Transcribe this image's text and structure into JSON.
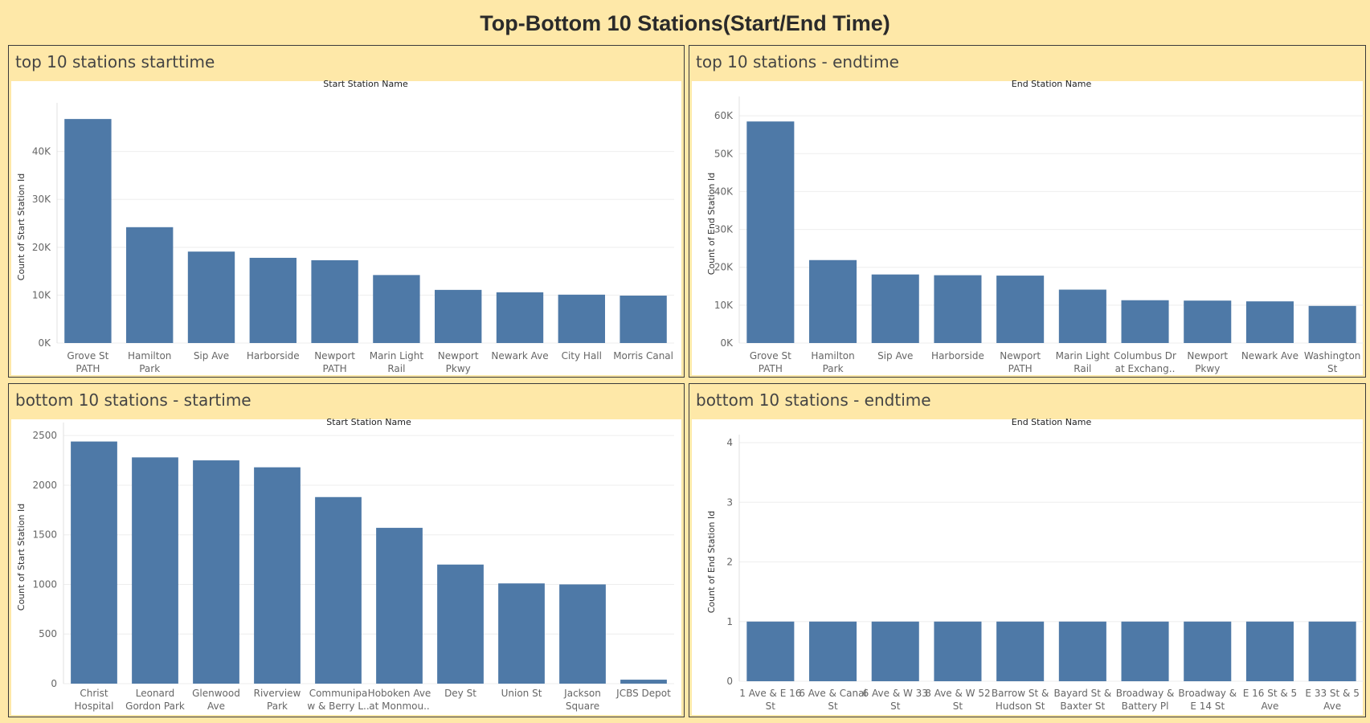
{
  "dashboard": {
    "title": "Top-Bottom 10 Stations(Start/End Time)"
  },
  "colors": {
    "bar": "#4e79a7",
    "background": "#fee8a8",
    "plot": "#ffffff"
  },
  "chart_data": [
    {
      "id": "top-start",
      "type": "bar",
      "title": "top 10 stations starttime",
      "column_header": "Start Station Name",
      "ylabel": "Count of Start Station Id",
      "ylim": [
        0,
        48500
      ],
      "yticks": [
        0,
        10000,
        20000,
        30000,
        40000
      ],
      "ytick_labels": [
        "0K",
        "10K",
        "20K",
        "30K",
        "40K"
      ],
      "categories": [
        [
          "Grove St",
          "PATH"
        ],
        [
          "Hamilton",
          "Park"
        ],
        [
          "Sip Ave"
        ],
        [
          "Harborside"
        ],
        [
          "Newport",
          "PATH"
        ],
        [
          "Marin Light",
          "Rail"
        ],
        [
          "Newport",
          "Pkwy"
        ],
        [
          "Newark Ave"
        ],
        [
          "City Hall"
        ],
        [
          "Morris Canal"
        ]
      ],
      "values": [
        46800,
        24200,
        19100,
        17800,
        17300,
        14200,
        11100,
        10600,
        10100,
        9900
      ]
    },
    {
      "id": "top-end",
      "type": "bar",
      "title": "top 10 stations - endtime",
      "column_header": "End Station Name",
      "ylabel": "Count of End Station Id",
      "ylim": [
        0,
        63000
      ],
      "yticks": [
        0,
        10000,
        20000,
        30000,
        40000,
        50000,
        60000
      ],
      "ytick_labels": [
        "0K",
        "10K",
        "20K",
        "30K",
        "40K",
        "50K",
        "60K"
      ],
      "categories": [
        [
          "Grove St",
          "PATH"
        ],
        [
          "Hamilton",
          "Park"
        ],
        [
          "Sip Ave"
        ],
        [
          "Harborside"
        ],
        [
          "Newport",
          "PATH"
        ],
        [
          "Marin Light",
          "Rail"
        ],
        [
          "Columbus Dr",
          "at Exchang.."
        ],
        [
          "Newport",
          "Pkwy"
        ],
        [
          "Newark Ave"
        ],
        [
          "Washington",
          "St"
        ]
      ],
      "values": [
        58500,
        21900,
        18100,
        17900,
        17800,
        14100,
        11300,
        11200,
        11000,
        9800
      ]
    },
    {
      "id": "bottom-start",
      "type": "bar",
      "title": "bottom 10 stations - startime",
      "column_header": "Start Station Name",
      "ylabel": "Count of Start Station Id",
      "ylim": [
        0,
        2550
      ],
      "yticks": [
        0,
        500,
        1000,
        1500,
        2000,
        2500
      ],
      "ytick_labels": [
        "0",
        "500",
        "1000",
        "1500",
        "2000",
        "2500"
      ],
      "categories": [
        [
          "Christ",
          "Hospital"
        ],
        [
          "Leonard",
          "Gordon Park"
        ],
        [
          "Glenwood",
          "Ave"
        ],
        [
          "Riverview",
          "Park"
        ],
        [
          "Communipa",
          "w & Berry L.."
        ],
        [
          "Hoboken Ave",
          "at Monmou.."
        ],
        [
          "Dey St"
        ],
        [
          "Union St"
        ],
        [
          "Jackson",
          "Square"
        ],
        [
          "JCBS Depot"
        ]
      ],
      "values": [
        2440,
        2280,
        2250,
        2180,
        1880,
        1570,
        1200,
        1010,
        1000,
        40
      ]
    },
    {
      "id": "bottom-end",
      "type": "bar",
      "title": "bottom 10 stations - endtime",
      "column_header": "End Station Name",
      "ylabel": "Count of End Station Id",
      "ylim": [
        0,
        4
      ],
      "yticks": [
        0,
        1,
        2,
        3,
        4
      ],
      "ytick_labels": [
        "0",
        "1",
        "2",
        "3",
        "4"
      ],
      "categories": [
        [
          "1 Ave & E 16",
          "St"
        ],
        [
          "6 Ave & Canal",
          "St"
        ],
        [
          "6 Ave & W 33",
          "St"
        ],
        [
          "8 Ave & W 52",
          "St"
        ],
        [
          "Barrow St &",
          "Hudson St"
        ],
        [
          "Bayard St &",
          "Baxter St"
        ],
        [
          "Broadway &",
          "Battery Pl"
        ],
        [
          "Broadway &",
          "E 14 St"
        ],
        [
          "E 16 St & 5",
          "Ave"
        ],
        [
          "E 33 St & 5",
          "Ave"
        ]
      ],
      "values": [
        1,
        1,
        1,
        1,
        1,
        1,
        1,
        1,
        1,
        1
      ]
    }
  ]
}
